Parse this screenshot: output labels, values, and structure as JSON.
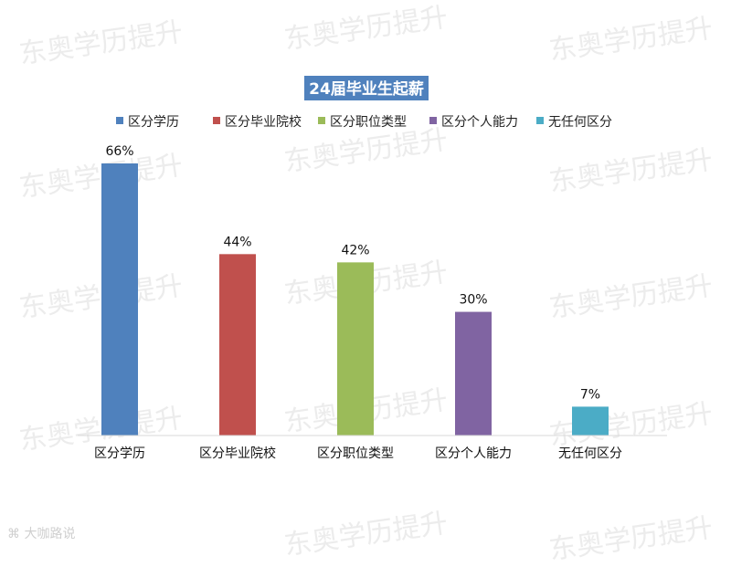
{
  "watermark": "东奥学历提升",
  "footer_logo": "大咖路说",
  "chart_data": {
    "type": "bar",
    "title": "24届毕业生起薪",
    "categories": [
      "区分学历",
      "区分毕业院校",
      "区分职位类型",
      "区分个人能力",
      "无任何区分"
    ],
    "values": [
      66,
      44,
      42,
      30,
      7
    ],
    "data_labels": [
      "66%",
      "44%",
      "42%",
      "30%",
      "7%"
    ],
    "colors": [
      "#4f81bd",
      "#c0504d",
      "#9bbb59",
      "#8064a2",
      "#4bacc6"
    ],
    "title_bg": "#4f81bd",
    "legend": {
      "position": "top",
      "entries": [
        "区分学历",
        "区分毕业院校",
        "区分职位类型",
        "区分个人能力",
        "无任何区分"
      ]
    },
    "ylim": [
      0,
      70
    ],
    "grid": false,
    "xlabel": "",
    "ylabel": ""
  }
}
